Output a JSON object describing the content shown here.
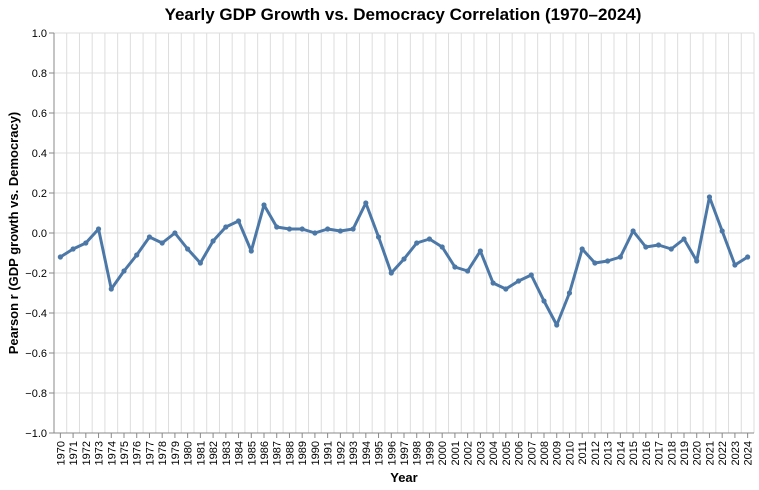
{
  "chart_data": {
    "type": "line",
    "title": "Yearly GDP Growth vs. Democracy Correlation (1970–2024)",
    "xlabel": "Year",
    "ylabel": "Pearson r (GDP growth vs. Democracy)",
    "ylim": [
      -1.0,
      1.0
    ],
    "yticks": [
      "1.0",
      "0.8",
      "0.6",
      "0.4",
      "0.2",
      "0.0",
      "−0.2",
      "−0.4",
      "−0.6",
      "−0.8",
      "−1.0"
    ],
    "ytick_values": [
      1.0,
      0.8,
      0.6,
      0.4,
      0.2,
      0.0,
      -0.2,
      -0.4,
      -0.6,
      -0.8,
      -1.0
    ],
    "grid": true,
    "line_color": "#4c78a8",
    "x": [
      "1970",
      "1971",
      "1972",
      "1973",
      "1974",
      "1975",
      "1976",
      "1977",
      "1978",
      "1979",
      "1980",
      "1981",
      "1982",
      "1983",
      "1984",
      "1985",
      "1986",
      "1987",
      "1988",
      "1989",
      "1990",
      "1991",
      "1992",
      "1993",
      "1994",
      "1995",
      "1996",
      "1997",
      "1998",
      "1999",
      "2000",
      "2001",
      "2002",
      "2003",
      "2004",
      "2005",
      "2006",
      "2007",
      "2008",
      "2009",
      "2010",
      "2011",
      "2012",
      "2013",
      "2014",
      "2015",
      "2016",
      "2017",
      "2018",
      "2019",
      "2020",
      "2021",
      "2022",
      "2023",
      "2024"
    ],
    "values": [
      -0.12,
      -0.08,
      -0.05,
      0.02,
      -0.28,
      -0.19,
      -0.11,
      -0.02,
      -0.05,
      0.0,
      -0.08,
      -0.15,
      -0.04,
      0.03,
      0.06,
      -0.09,
      0.14,
      0.03,
      0.02,
      0.02,
      0.0,
      0.02,
      0.01,
      0.02,
      0.15,
      -0.02,
      -0.2,
      -0.13,
      -0.05,
      -0.03,
      -0.07,
      -0.17,
      -0.19,
      -0.09,
      -0.25,
      -0.28,
      -0.24,
      -0.21,
      -0.34,
      -0.46,
      -0.3,
      -0.08,
      -0.15,
      -0.14,
      -0.12,
      0.01,
      -0.07,
      -0.06,
      -0.08,
      -0.03,
      -0.14,
      0.18,
      0.01,
      -0.16,
      -0.12
    ]
  }
}
